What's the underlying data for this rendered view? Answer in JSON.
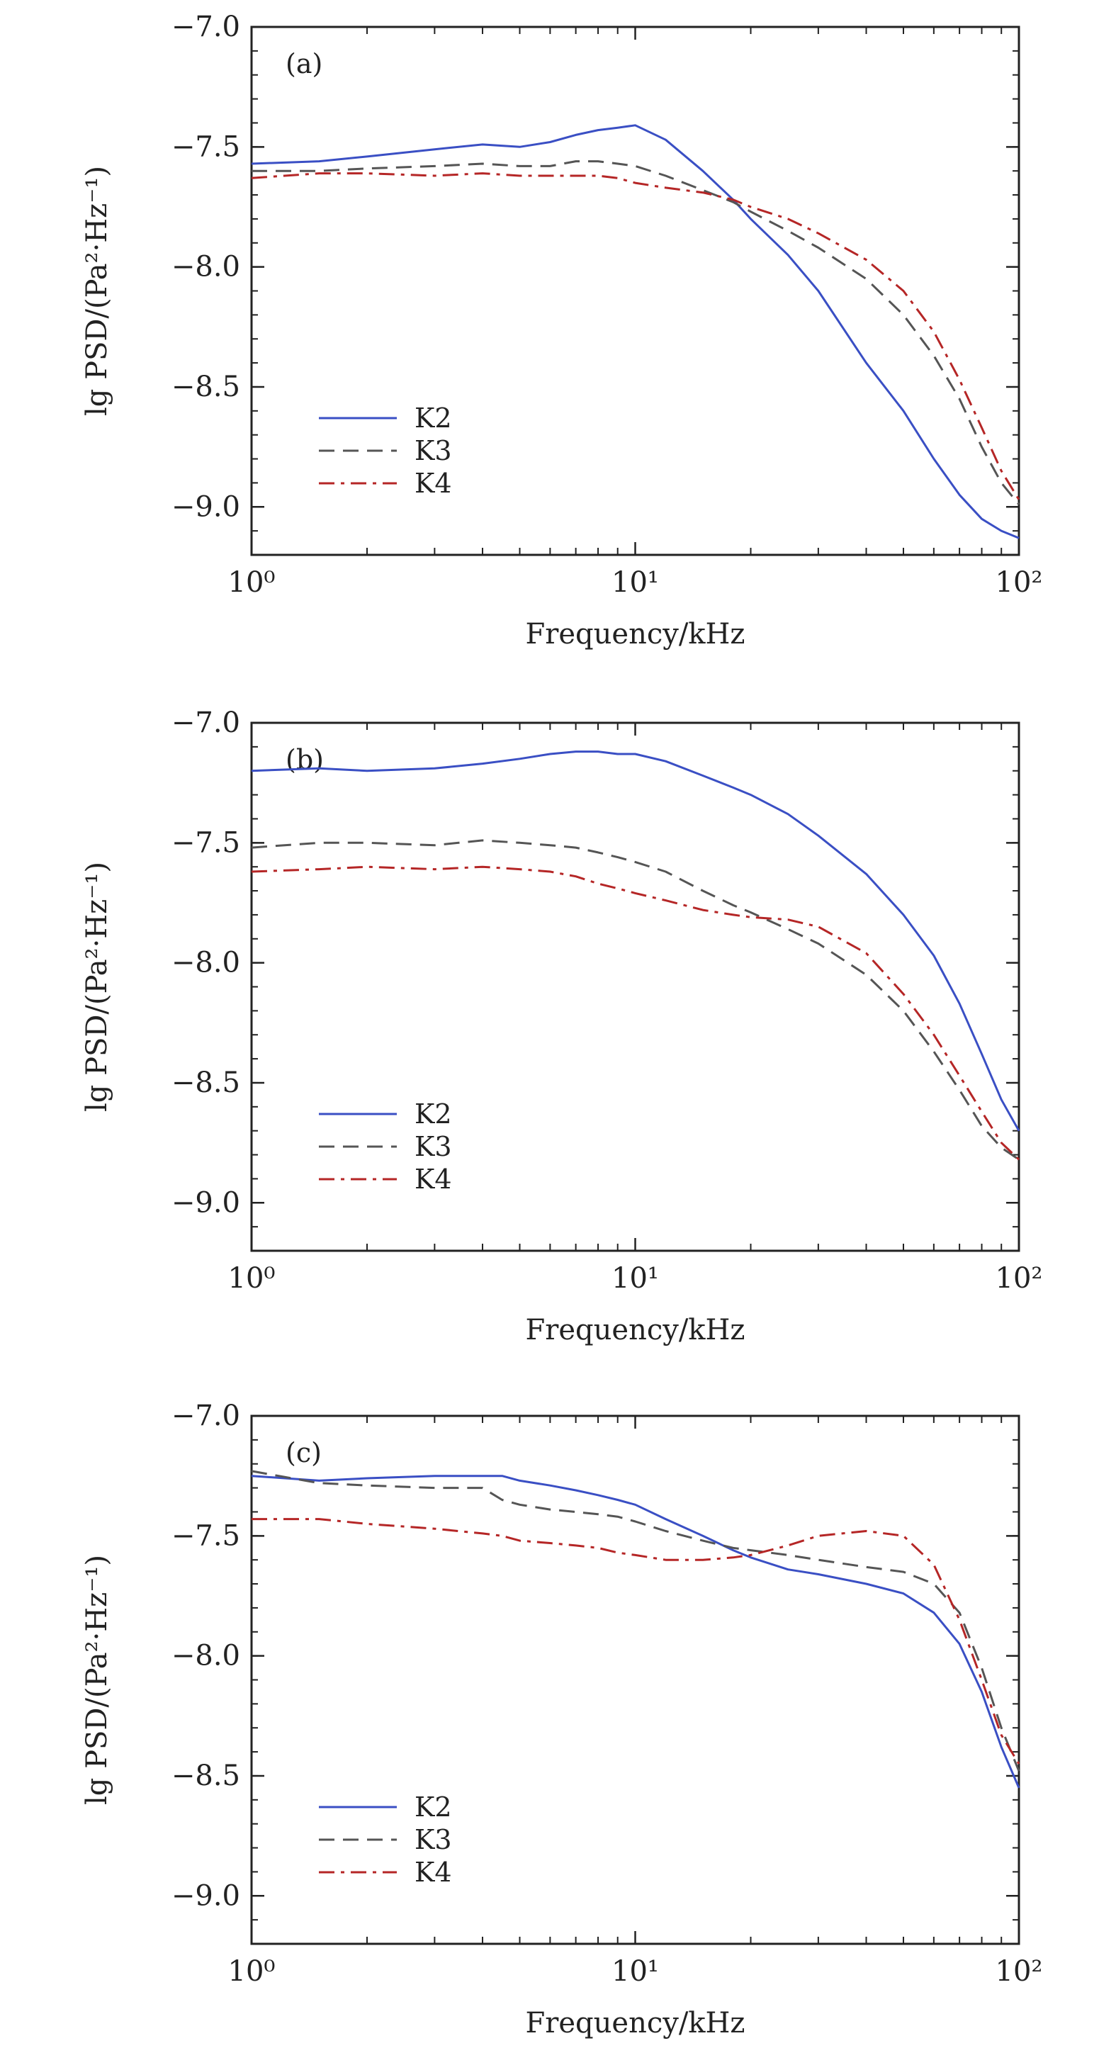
{
  "chart_data": [
    {
      "type": "line",
      "panel_label": "(a)",
      "xlabel": "Frequency/kHz",
      "ylabel": "lg PSD/(Pa²·Hz⁻¹)",
      "xscale": "log",
      "xlim": [
        1,
        100
      ],
      "ylim": [
        -9.2,
        -7.0
      ],
      "xticks": [
        {
          "value": 1,
          "label": "10⁰"
        },
        {
          "value": 10,
          "label": "10¹"
        },
        {
          "value": 100,
          "label": "10²"
        }
      ],
      "yticks": [
        -7.0,
        -7.5,
        -8.0,
        -8.5,
        -9.0
      ],
      "ytick_labels": [
        "−7.0",
        "−7.5",
        "−8.0",
        "−8.5",
        "−9.0"
      ],
      "legend_position": "bottom-left",
      "series": [
        {
          "name": "K2",
          "color": "#3a4fc4",
          "dash": "solid",
          "x": [
            1,
            1.5,
            2,
            3,
            4,
            5,
            6,
            7,
            8,
            9,
            10,
            12,
            15,
            18,
            20,
            25,
            30,
            40,
            50,
            60,
            70,
            80,
            90,
            100
          ],
          "y": [
            -7.57,
            -7.56,
            -7.54,
            -7.51,
            -7.49,
            -7.5,
            -7.48,
            -7.45,
            -7.43,
            -7.42,
            -7.41,
            -7.47,
            -7.6,
            -7.72,
            -7.8,
            -7.95,
            -8.1,
            -8.4,
            -8.6,
            -8.8,
            -8.95,
            -9.05,
            -9.1,
            -9.13
          ]
        },
        {
          "name": "K3",
          "color": "#555555",
          "dash": "dash",
          "x": [
            1,
            1.5,
            2,
            3,
            4,
            5,
            6,
            7,
            8,
            9,
            10,
            12,
            15,
            18,
            20,
            25,
            30,
            40,
            50,
            60,
            70,
            80,
            90,
            100
          ],
          "y": [
            -7.6,
            -7.6,
            -7.59,
            -7.58,
            -7.57,
            -7.58,
            -7.58,
            -7.56,
            -7.56,
            -7.57,
            -7.58,
            -7.62,
            -7.68,
            -7.73,
            -7.77,
            -7.85,
            -7.92,
            -8.05,
            -8.2,
            -8.37,
            -8.55,
            -8.75,
            -8.9,
            -8.99
          ]
        },
        {
          "name": "K4",
          "color": "#b52626",
          "dash": "dashdot",
          "x": [
            1,
            1.5,
            2,
            3,
            4,
            5,
            6,
            7,
            8,
            9,
            10,
            12,
            15,
            18,
            20,
            25,
            30,
            40,
            50,
            60,
            70,
            80,
            90,
            100
          ],
          "y": [
            -7.63,
            -7.61,
            -7.61,
            -7.62,
            -7.61,
            -7.62,
            -7.62,
            -7.62,
            -7.62,
            -7.63,
            -7.65,
            -7.67,
            -7.69,
            -7.72,
            -7.75,
            -7.8,
            -7.86,
            -7.97,
            -8.1,
            -8.27,
            -8.47,
            -8.67,
            -8.85,
            -8.97
          ]
        }
      ]
    },
    {
      "type": "line",
      "panel_label": "(b)",
      "xlabel": "Frequency/kHz",
      "ylabel": "lg PSD/(Pa²·Hz⁻¹)",
      "xscale": "log",
      "xlim": [
        1,
        100
      ],
      "ylim": [
        -9.2,
        -7.0
      ],
      "xticks": [
        {
          "value": 1,
          "label": "10⁰"
        },
        {
          "value": 10,
          "label": "10¹"
        },
        {
          "value": 100,
          "label": "10²"
        }
      ],
      "yticks": [
        -7.0,
        -7.5,
        -8.0,
        -8.5,
        -9.0
      ],
      "ytick_labels": [
        "−7.0",
        "−7.5",
        "−8.0",
        "−8.5",
        "−9.0"
      ],
      "legend_position": "bottom-left",
      "series": [
        {
          "name": "K2",
          "color": "#3a4fc4",
          "dash": "solid",
          "x": [
            1,
            1.5,
            2,
            3,
            4,
            5,
            6,
            7,
            8,
            9,
            10,
            12,
            15,
            18,
            20,
            25,
            30,
            40,
            50,
            60,
            70,
            80,
            90,
            100
          ],
          "y": [
            -7.2,
            -7.19,
            -7.2,
            -7.19,
            -7.17,
            -7.15,
            -7.13,
            -7.12,
            -7.12,
            -7.13,
            -7.13,
            -7.16,
            -7.22,
            -7.27,
            -7.3,
            -7.38,
            -7.47,
            -7.63,
            -7.8,
            -7.97,
            -8.17,
            -8.38,
            -8.57,
            -8.7
          ]
        },
        {
          "name": "K3",
          "color": "#555555",
          "dash": "dash",
          "x": [
            1,
            1.5,
            2,
            3,
            4,
            5,
            6,
            7,
            8,
            9,
            10,
            12,
            15,
            18,
            20,
            25,
            30,
            40,
            50,
            60,
            70,
            80,
            90,
            100
          ],
          "y": [
            -7.52,
            -7.5,
            -7.5,
            -7.51,
            -7.49,
            -7.5,
            -7.51,
            -7.52,
            -7.54,
            -7.56,
            -7.58,
            -7.62,
            -7.7,
            -7.76,
            -7.79,
            -7.86,
            -7.92,
            -8.05,
            -8.2,
            -8.37,
            -8.53,
            -8.68,
            -8.77,
            -8.82
          ]
        },
        {
          "name": "K4",
          "color": "#b52626",
          "dash": "dashdot",
          "x": [
            1,
            1.5,
            2,
            3,
            4,
            5,
            6,
            7,
            8,
            9,
            10,
            12,
            15,
            18,
            20,
            25,
            30,
            40,
            50,
            60,
            70,
            80,
            90,
            100
          ],
          "y": [
            -7.62,
            -7.61,
            -7.6,
            -7.61,
            -7.6,
            -7.61,
            -7.62,
            -7.64,
            -7.67,
            -7.69,
            -7.71,
            -7.74,
            -7.78,
            -7.8,
            -7.81,
            -7.82,
            -7.85,
            -7.96,
            -8.13,
            -8.3,
            -8.47,
            -8.62,
            -8.75,
            -8.82
          ]
        }
      ]
    },
    {
      "type": "line",
      "panel_label": "(c)",
      "xlabel": "Frequency/kHz",
      "ylabel": "lg PSD/(Pa²·Hz⁻¹)",
      "xscale": "log",
      "xlim": [
        1,
        100
      ],
      "ylim": [
        -9.2,
        -7.0
      ],
      "xticks": [
        {
          "value": 1,
          "label": "10⁰"
        },
        {
          "value": 10,
          "label": "10¹"
        },
        {
          "value": 100,
          "label": "10²"
        }
      ],
      "yticks": [
        -7.0,
        -7.5,
        -8.0,
        -8.5,
        -9.0
      ],
      "ytick_labels": [
        "−7.0",
        "−7.5",
        "−8.0",
        "−8.5",
        "−9.0"
      ],
      "legend_position": "bottom-left",
      "series": [
        {
          "name": "K2",
          "color": "#3a4fc4",
          "dash": "solid",
          "x": [
            1,
            1.5,
            2,
            3,
            4,
            4.5,
            5,
            6,
            7,
            8,
            9,
            10,
            12,
            15,
            18,
            20,
            25,
            30,
            40,
            50,
            60,
            70,
            80,
            90,
            100
          ],
          "y": [
            -7.25,
            -7.27,
            -7.26,
            -7.25,
            -7.25,
            -7.25,
            -7.27,
            -7.29,
            -7.31,
            -7.33,
            -7.35,
            -7.37,
            -7.43,
            -7.5,
            -7.56,
            -7.59,
            -7.64,
            -7.66,
            -7.7,
            -7.74,
            -7.82,
            -7.95,
            -8.15,
            -8.38,
            -8.55
          ]
        },
        {
          "name": "K3",
          "color": "#555555",
          "dash": "dash",
          "x": [
            1,
            1.5,
            2,
            3,
            4,
            4.5,
            5,
            6,
            7,
            8,
            9,
            10,
            12,
            15,
            18,
            20,
            25,
            30,
            40,
            50,
            60,
            70,
            80,
            90,
            100
          ],
          "y": [
            -7.23,
            -7.28,
            -7.29,
            -7.3,
            -7.3,
            -7.35,
            -7.37,
            -7.39,
            -7.4,
            -7.41,
            -7.42,
            -7.44,
            -7.48,
            -7.52,
            -7.55,
            -7.56,
            -7.58,
            -7.6,
            -7.63,
            -7.65,
            -7.7,
            -7.82,
            -8.05,
            -8.3,
            -8.48
          ]
        },
        {
          "name": "K4",
          "color": "#b52626",
          "dash": "dashdot",
          "x": [
            1,
            1.5,
            2,
            3,
            4,
            4.5,
            5,
            6,
            7,
            8,
            9,
            10,
            12,
            15,
            18,
            20,
            25,
            30,
            40,
            50,
            60,
            70,
            80,
            90,
            100
          ],
          "y": [
            -7.43,
            -7.43,
            -7.45,
            -7.47,
            -7.49,
            -7.5,
            -7.52,
            -7.53,
            -7.54,
            -7.55,
            -7.57,
            -7.58,
            -7.6,
            -7.6,
            -7.59,
            -7.58,
            -7.54,
            -7.5,
            -7.48,
            -7.5,
            -7.62,
            -7.85,
            -8.1,
            -8.33,
            -8.45
          ]
        }
      ]
    }
  ]
}
